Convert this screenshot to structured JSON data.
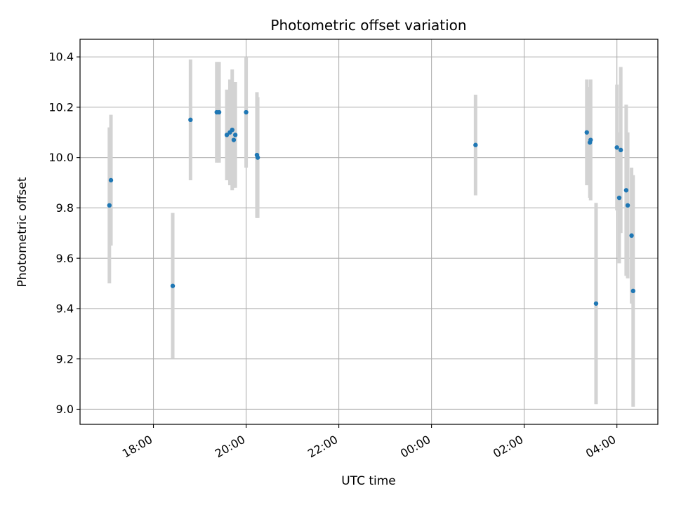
{
  "chart_data": {
    "type": "scatter",
    "title": "Photometric offset variation",
    "xlabel": "UTC time",
    "ylabel": "Photometric offset",
    "x_unit": "UTC",
    "xlim": [
      "16:25",
      "04:53 (next day)"
    ],
    "ylim": [
      8.94,
      10.47
    ],
    "x_ticks": [
      "18:00",
      "20:00",
      "22:00",
      "00:00",
      "02:00",
      "04:00"
    ],
    "y_ticks": [
      9.0,
      9.2,
      9.4,
      9.6,
      9.8,
      10.0,
      10.2,
      10.4
    ],
    "grid": true,
    "point_color": "#1f77b4",
    "errorbar_color": "#d3d3d3",
    "points": [
      {
        "time": "17:03",
        "y": 9.81,
        "err": 0.31
      },
      {
        "time": "17:05",
        "y": 9.91,
        "err": 0.26
      },
      {
        "time": "18:25",
        "y": 9.49,
        "err": 0.29
      },
      {
        "time": "18:48",
        "y": 10.15,
        "err": 0.24
      },
      {
        "time": "19:22",
        "y": 10.18,
        "err": 0.2
      },
      {
        "time": "19:25",
        "y": 10.18,
        "err": 0.2
      },
      {
        "time": "19:35",
        "y": 10.09,
        "err": 0.18
      },
      {
        "time": "19:39",
        "y": 10.1,
        "err": 0.21
      },
      {
        "time": "19:42",
        "y": 10.11,
        "err": 0.24
      },
      {
        "time": "19:44",
        "y": 10.07,
        "err": 0.19
      },
      {
        "time": "19:46",
        "y": 10.09,
        "err": 0.21
      },
      {
        "time": "20:00",
        "y": 10.18,
        "err": 0.22
      },
      {
        "time": "20:14",
        "y": 10.01,
        "err": 0.25
      },
      {
        "time": "20:15",
        "y": 10.0,
        "err": 0.24
      },
      {
        "time": "00:57",
        "y": 10.05,
        "err": 0.2
      },
      {
        "time": "03:21",
        "y": 10.1,
        "err": 0.21
      },
      {
        "time": "03:25",
        "y": 10.06,
        "err": 0.22
      },
      {
        "time": "03:26",
        "y": 10.07,
        "err": 0.24
      },
      {
        "time": "03:33",
        "y": 9.42,
        "err": 0.4
      },
      {
        "time": "04:00",
        "y": 10.04,
        "err": 0.25
      },
      {
        "time": "04:03",
        "y": 9.84,
        "err": 0.26
      },
      {
        "time": "04:05",
        "y": 10.03,
        "err": 0.33
      },
      {
        "time": "04:12",
        "y": 9.87,
        "err": 0.34
      },
      {
        "time": "04:14",
        "y": 9.81,
        "err": 0.29
      },
      {
        "time": "04:19",
        "y": 9.69,
        "err": 0.27
      },
      {
        "time": "04:21",
        "y": 9.47,
        "err": 0.46
      }
    ]
  }
}
